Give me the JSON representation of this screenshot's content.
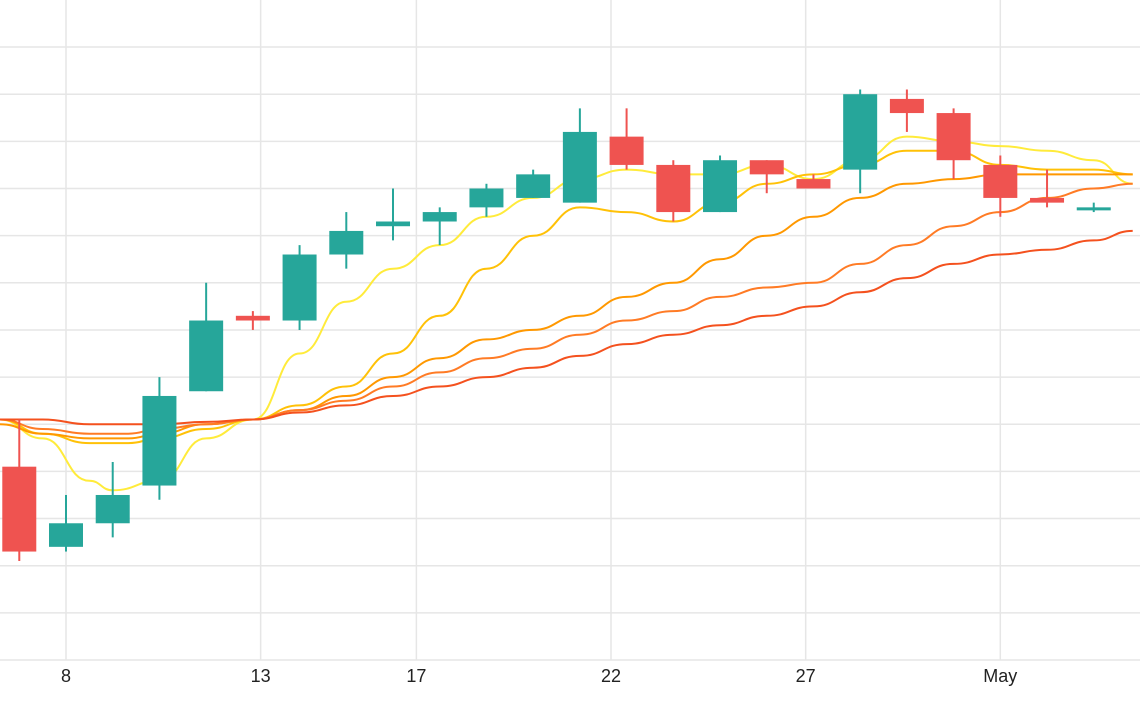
{
  "chart_data": {
    "type": "candlestick",
    "title": "",
    "xlabel": "",
    "ylabel": "",
    "x_tick_labels": [
      "8",
      "13",
      "17",
      "22",
      "27",
      "May"
    ],
    "x_tick_days": [
      8,
      13,
      17,
      22,
      27,
      32
    ],
    "grid": true,
    "y_gridlines": [
      0,
      1,
      2,
      3,
      4,
      5,
      6,
      7,
      8,
      9,
      10,
      11,
      12,
      13
    ],
    "ylim": [
      0,
      14
    ],
    "xlim": [
      6.3,
      35.4
    ],
    "colors": {
      "up": "#26a69a",
      "down": "#ef5350",
      "grid": "#e6e6e6"
    },
    "candles": [
      {
        "day": 6.8,
        "open": 4.1,
        "high": 5.1,
        "low": 2.1,
        "close": 2.3
      },
      {
        "day": 8.0,
        "open": 2.4,
        "high": 3.5,
        "low": 2.3,
        "close": 2.9
      },
      {
        "day": 9.2,
        "open": 2.9,
        "high": 4.2,
        "low": 2.6,
        "close": 3.5
      },
      {
        "day": 10.4,
        "open": 3.7,
        "high": 6.0,
        "low": 3.4,
        "close": 5.6
      },
      {
        "day": 11.6,
        "open": 5.7,
        "high": 8.0,
        "low": 5.7,
        "close": 7.2
      },
      {
        "day": 12.8,
        "open": 7.3,
        "high": 7.4,
        "low": 7.0,
        "close": 7.2
      },
      {
        "day": 14.0,
        "open": 7.2,
        "high": 8.8,
        "low": 7.0,
        "close": 8.6
      },
      {
        "day": 15.2,
        "open": 8.6,
        "high": 9.5,
        "low": 8.3,
        "close": 9.1
      },
      {
        "day": 16.4,
        "open": 9.2,
        "high": 10.0,
        "low": 8.9,
        "close": 9.3
      },
      {
        "day": 17.6,
        "open": 9.3,
        "high": 9.6,
        "low": 8.8,
        "close": 9.5
      },
      {
        "day": 18.8,
        "open": 9.6,
        "high": 10.1,
        "low": 9.4,
        "close": 10.0
      },
      {
        "day": 20.0,
        "open": 9.8,
        "high": 10.4,
        "low": 9.8,
        "close": 10.3
      },
      {
        "day": 21.2,
        "open": 9.7,
        "high": 11.7,
        "low": 9.7,
        "close": 11.2
      },
      {
        "day": 22.4,
        "open": 11.1,
        "high": 11.7,
        "low": 10.4,
        "close": 10.5
      },
      {
        "day": 23.6,
        "open": 10.5,
        "high": 10.6,
        "low": 9.3,
        "close": 9.5
      },
      {
        "day": 24.8,
        "open": 9.5,
        "high": 10.7,
        "low": 9.5,
        "close": 10.6
      },
      {
        "day": 26.0,
        "open": 10.6,
        "high": 10.6,
        "low": 9.9,
        "close": 10.3
      },
      {
        "day": 27.2,
        "open": 10.2,
        "high": 10.3,
        "low": 10.0,
        "close": 10.0
      },
      {
        "day": 28.4,
        "open": 10.4,
        "high": 12.1,
        "low": 9.9,
        "close": 12.0
      },
      {
        "day": 29.6,
        "open": 11.9,
        "high": 12.1,
        "low": 11.2,
        "close": 11.6
      },
      {
        "day": 30.8,
        "open": 11.6,
        "high": 11.7,
        "low": 10.2,
        "close": 10.6
      },
      {
        "day": 32.0,
        "open": 10.5,
        "high": 10.7,
        "low": 9.4,
        "close": 9.8
      },
      {
        "day": 33.2,
        "open": 9.8,
        "high": 10.4,
        "low": 9.6,
        "close": 9.7
      },
      {
        "day": 34.4,
        "open": 9.6,
        "high": 9.7,
        "low": 9.5,
        "close": 9.6
      }
    ],
    "series": [
      {
        "color": "#ffeb3b",
        "values": [
          [
            6.3,
            5.1
          ],
          [
            7.4,
            4.7
          ],
          [
            8.6,
            3.8
          ],
          [
            9.2,
            3.6
          ],
          [
            10.4,
            3.8
          ],
          [
            11.6,
            4.7
          ],
          [
            12.8,
            5.1
          ],
          [
            14.0,
            6.5
          ],
          [
            15.2,
            7.6
          ],
          [
            16.4,
            8.3
          ],
          [
            17.6,
            8.8
          ],
          [
            18.8,
            9.4
          ],
          [
            20.0,
            9.8
          ],
          [
            21.2,
            10.2
          ],
          [
            22.4,
            10.4
          ],
          [
            23.6,
            10.3
          ],
          [
            24.8,
            10.3
          ],
          [
            26.0,
            10.5
          ],
          [
            27.2,
            10.2
          ],
          [
            28.4,
            10.6
          ],
          [
            29.6,
            11.1
          ],
          [
            30.8,
            11.0
          ],
          [
            32.0,
            10.9
          ],
          [
            33.2,
            10.8
          ],
          [
            34.4,
            10.6
          ],
          [
            35.4,
            10.1
          ]
        ]
      },
      {
        "color": "#ffc107",
        "values": [
          [
            6.3,
            5.1
          ],
          [
            7.4,
            4.8
          ],
          [
            8.6,
            4.6
          ],
          [
            9.6,
            4.6
          ],
          [
            10.4,
            4.7
          ],
          [
            11.6,
            4.9
          ],
          [
            12.8,
            5.1
          ],
          [
            14.0,
            5.4
          ],
          [
            15.2,
            5.8
          ],
          [
            16.4,
            6.5
          ],
          [
            17.6,
            7.3
          ],
          [
            18.8,
            8.3
          ],
          [
            20.0,
            9.0
          ],
          [
            21.2,
            9.6
          ],
          [
            22.4,
            9.5
          ],
          [
            23.6,
            9.3
          ],
          [
            24.8,
            9.7
          ],
          [
            26.0,
            10.1
          ],
          [
            27.2,
            10.3
          ],
          [
            28.4,
            10.5
          ],
          [
            29.6,
            10.8
          ],
          [
            30.8,
            10.8
          ],
          [
            32.0,
            10.5
          ],
          [
            33.2,
            10.4
          ],
          [
            34.4,
            10.4
          ],
          [
            35.4,
            10.3
          ]
        ]
      },
      {
        "color": "#ff9800",
        "values": [
          [
            6.3,
            5.0
          ],
          [
            7.4,
            4.8
          ],
          [
            8.6,
            4.7
          ],
          [
            9.6,
            4.7
          ],
          [
            10.4,
            4.8
          ],
          [
            11.6,
            5.0
          ],
          [
            12.8,
            5.1
          ],
          [
            14.0,
            5.3
          ],
          [
            15.2,
            5.6
          ],
          [
            16.4,
            6.0
          ],
          [
            17.6,
            6.4
          ],
          [
            18.8,
            6.8
          ],
          [
            20.0,
            7.0
          ],
          [
            21.2,
            7.3
          ],
          [
            22.4,
            7.7
          ],
          [
            23.6,
            8.0
          ],
          [
            24.8,
            8.5
          ],
          [
            26.0,
            9.0
          ],
          [
            27.2,
            9.4
          ],
          [
            28.4,
            9.8
          ],
          [
            29.6,
            10.1
          ],
          [
            30.8,
            10.2
          ],
          [
            32.0,
            10.3
          ],
          [
            33.2,
            10.3
          ],
          [
            34.4,
            10.3
          ],
          [
            35.4,
            10.3
          ]
        ]
      },
      {
        "color": "#ff7b25",
        "values": [
          [
            6.3,
            5.1
          ],
          [
            7.4,
            4.9
          ],
          [
            8.6,
            4.8
          ],
          [
            9.6,
            4.8
          ],
          [
            10.4,
            4.9
          ],
          [
            11.6,
            5.0
          ],
          [
            12.8,
            5.1
          ],
          [
            14.0,
            5.3
          ],
          [
            15.2,
            5.5
          ],
          [
            16.4,
            5.8
          ],
          [
            17.6,
            6.1
          ],
          [
            18.8,
            6.4
          ],
          [
            20.0,
            6.6
          ],
          [
            21.2,
            6.9
          ],
          [
            22.4,
            7.2
          ],
          [
            23.6,
            7.4
          ],
          [
            24.8,
            7.7
          ],
          [
            26.0,
            7.9
          ],
          [
            27.2,
            8.0
          ],
          [
            28.4,
            8.4
          ],
          [
            29.6,
            8.8
          ],
          [
            30.8,
            9.2
          ],
          [
            32.0,
            9.5
          ],
          [
            33.2,
            9.8
          ],
          [
            34.4,
            10.0
          ],
          [
            35.4,
            10.1
          ]
        ]
      },
      {
        "color": "#f4511e",
        "values": [
          [
            6.3,
            5.1
          ],
          [
            7.4,
            5.1
          ],
          [
            8.6,
            5.0
          ],
          [
            9.6,
            5.0
          ],
          [
            10.4,
            5.0
          ],
          [
            11.6,
            5.05
          ],
          [
            12.8,
            5.1
          ],
          [
            14.0,
            5.25
          ],
          [
            15.2,
            5.4
          ],
          [
            16.4,
            5.6
          ],
          [
            17.6,
            5.8
          ],
          [
            18.8,
            6.0
          ],
          [
            20.0,
            6.2
          ],
          [
            21.2,
            6.45
          ],
          [
            22.4,
            6.7
          ],
          [
            23.6,
            6.9
          ],
          [
            24.8,
            7.1
          ],
          [
            26.0,
            7.3
          ],
          [
            27.2,
            7.5
          ],
          [
            28.4,
            7.8
          ],
          [
            29.6,
            8.1
          ],
          [
            30.8,
            8.4
          ],
          [
            32.0,
            8.6
          ],
          [
            33.2,
            8.7
          ],
          [
            34.4,
            8.9
          ],
          [
            35.4,
            9.1
          ]
        ]
      }
    ]
  }
}
